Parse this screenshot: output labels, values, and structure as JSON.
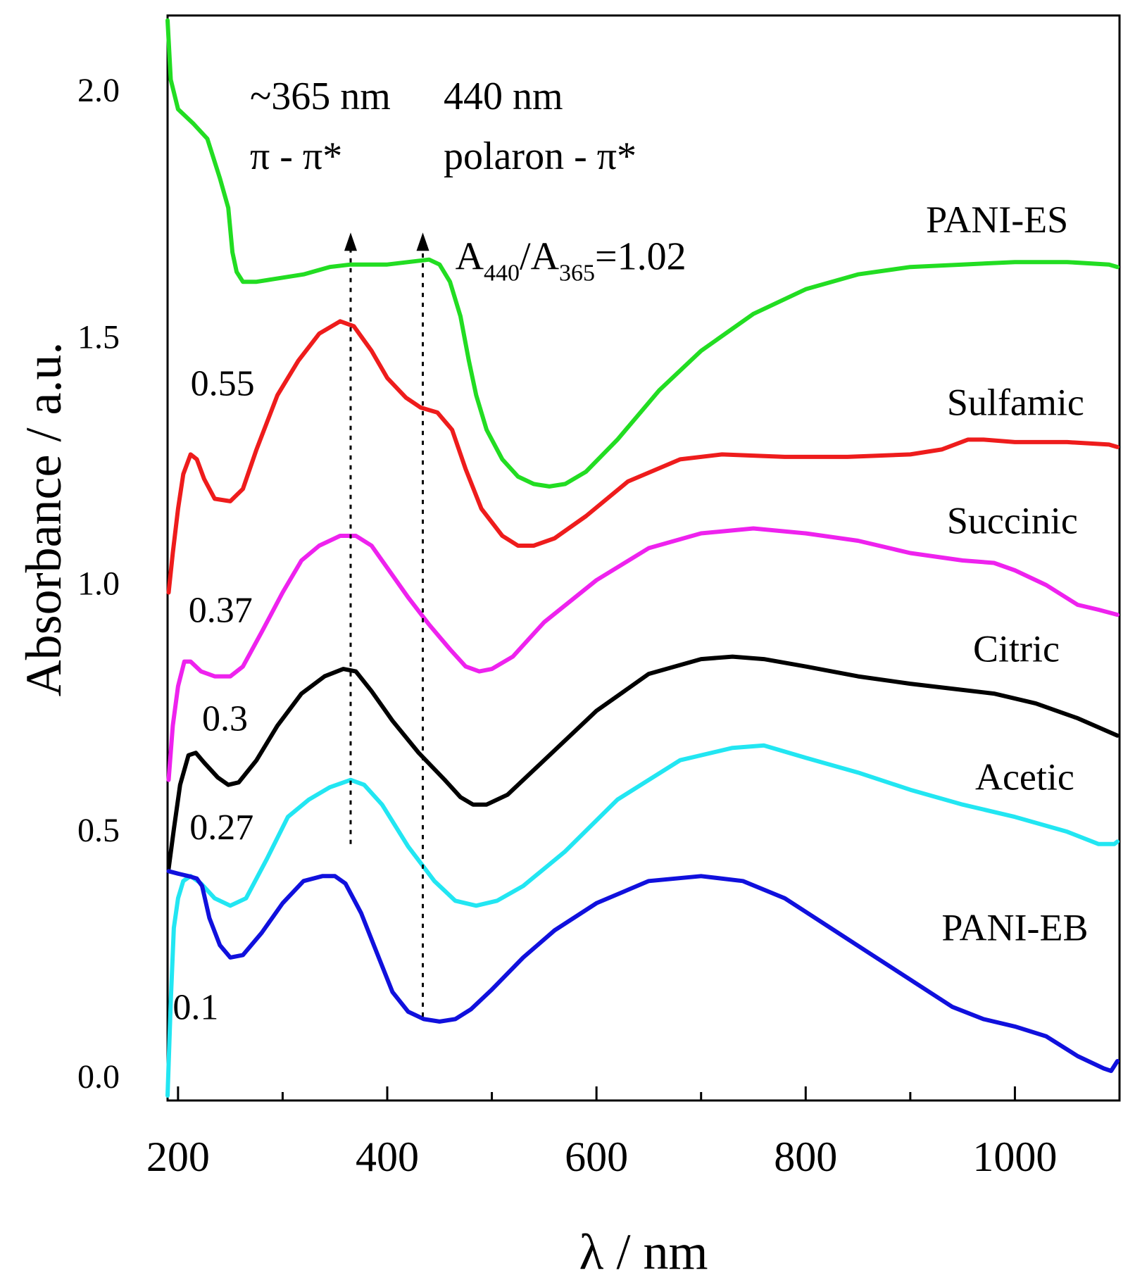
{
  "chart_data": {
    "type": "line",
    "title": "",
    "xlabel": "λ / nm",
    "ylabel": "Absorbance / a.u.",
    "xlim": [
      190,
      1100
    ],
    "ylim": [
      -0.05,
      2.15
    ],
    "x_ticks": [
      200,
      400,
      600,
      800,
      1000
    ],
    "x_tick_labels": [
      "200",
      "400",
      "600",
      "800",
      "1000"
    ],
    "x_minor_ticks": [
      300,
      500,
      700,
      900
    ],
    "y_ticks": [
      0.0,
      0.5,
      1.0,
      1.5,
      2.0
    ],
    "y_tick_labels": [
      "0.0",
      "0.5",
      "1.0",
      "1.5",
      "2.0"
    ],
    "grid": false,
    "series": [
      {
        "name": "PANI-ES",
        "color": "#22dd22",
        "points": [
          [
            190,
            2.14
          ],
          [
            193,
            2.02
          ],
          [
            200,
            1.96
          ],
          [
            215,
            1.93
          ],
          [
            228,
            1.9
          ],
          [
            240,
            1.82
          ],
          [
            248,
            1.76
          ],
          [
            252,
            1.67
          ],
          [
            256,
            1.63
          ],
          [
            262,
            1.61
          ],
          [
            275,
            1.61
          ],
          [
            290,
            1.615
          ],
          [
            320,
            1.625
          ],
          [
            345,
            1.64
          ],
          [
            365,
            1.645
          ],
          [
            385,
            1.645
          ],
          [
            400,
            1.645
          ],
          [
            420,
            1.65
          ],
          [
            440,
            1.655
          ],
          [
            450,
            1.645
          ],
          [
            460,
            1.61
          ],
          [
            470,
            1.54
          ],
          [
            478,
            1.45
          ],
          [
            485,
            1.38
          ],
          [
            495,
            1.31
          ],
          [
            510,
            1.25
          ],
          [
            525,
            1.215
          ],
          [
            540,
            1.2
          ],
          [
            555,
            1.195
          ],
          [
            570,
            1.2
          ],
          [
            590,
            1.225
          ],
          [
            620,
            1.29
          ],
          [
            660,
            1.39
          ],
          [
            700,
            1.47
          ],
          [
            750,
            1.545
          ],
          [
            800,
            1.595
          ],
          [
            850,
            1.625
          ],
          [
            900,
            1.64
          ],
          [
            950,
            1.645
          ],
          [
            1000,
            1.65
          ],
          [
            1050,
            1.65
          ],
          [
            1090,
            1.645
          ],
          [
            1098,
            1.64
          ]
        ]
      },
      {
        "name": "Sulfamic",
        "color": "#ee1c1c",
        "points": [
          [
            191,
            0.98
          ],
          [
            195,
            1.06
          ],
          [
            200,
            1.15
          ],
          [
            205,
            1.22
          ],
          [
            212,
            1.26
          ],
          [
            218,
            1.25
          ],
          [
            225,
            1.21
          ],
          [
            235,
            1.17
          ],
          [
            250,
            1.165
          ],
          [
            262,
            1.19
          ],
          [
            275,
            1.27
          ],
          [
            295,
            1.38
          ],
          [
            315,
            1.45
          ],
          [
            335,
            1.505
          ],
          [
            355,
            1.53
          ],
          [
            368,
            1.52
          ],
          [
            385,
            1.47
          ],
          [
            400,
            1.415
          ],
          [
            418,
            1.375
          ],
          [
            432,
            1.355
          ],
          [
            448,
            1.345
          ],
          [
            462,
            1.31
          ],
          [
            475,
            1.23
          ],
          [
            490,
            1.15
          ],
          [
            510,
            1.095
          ],
          [
            525,
            1.075
          ],
          [
            540,
            1.075
          ],
          [
            560,
            1.09
          ],
          [
            590,
            1.135
          ],
          [
            630,
            1.205
          ],
          [
            680,
            1.25
          ],
          [
            720,
            1.26
          ],
          [
            780,
            1.255
          ],
          [
            840,
            1.255
          ],
          [
            900,
            1.26
          ],
          [
            930,
            1.27
          ],
          [
            955,
            1.29
          ],
          [
            970,
            1.29
          ],
          [
            1000,
            1.285
          ],
          [
            1050,
            1.285
          ],
          [
            1090,
            1.28
          ],
          [
            1098,
            1.275
          ]
        ]
      },
      {
        "name": "Succinic",
        "color": "#ee22ee",
        "points": [
          [
            191,
            0.6
          ],
          [
            195,
            0.71
          ],
          [
            200,
            0.79
          ],
          [
            206,
            0.84
          ],
          [
            212,
            0.84
          ],
          [
            222,
            0.82
          ],
          [
            235,
            0.81
          ],
          [
            250,
            0.81
          ],
          [
            262,
            0.83
          ],
          [
            280,
            0.9
          ],
          [
            300,
            0.98
          ],
          [
            318,
            1.045
          ],
          [
            335,
            1.075
          ],
          [
            355,
            1.095
          ],
          [
            370,
            1.095
          ],
          [
            385,
            1.075
          ],
          [
            400,
            1.03
          ],
          [
            420,
            0.97
          ],
          [
            440,
            0.915
          ],
          [
            460,
            0.865
          ],
          [
            475,
            0.83
          ],
          [
            488,
            0.82
          ],
          [
            500,
            0.825
          ],
          [
            520,
            0.85
          ],
          [
            550,
            0.92
          ],
          [
            600,
            1.005
          ],
          [
            650,
            1.07
          ],
          [
            700,
            1.1
          ],
          [
            750,
            1.11
          ],
          [
            800,
            1.1
          ],
          [
            850,
            1.085
          ],
          [
            900,
            1.06
          ],
          [
            950,
            1.045
          ],
          [
            980,
            1.04
          ],
          [
            1000,
            1.025
          ],
          [
            1030,
            0.995
          ],
          [
            1060,
            0.955
          ],
          [
            1080,
            0.945
          ],
          [
            1098,
            0.935
          ]
        ]
      },
      {
        "name": "Citric",
        "color": "#000000",
        "points": [
          [
            191,
            0.42
          ],
          [
            196,
            0.5
          ],
          [
            202,
            0.59
          ],
          [
            210,
            0.65
          ],
          [
            217,
            0.655
          ],
          [
            225,
            0.635
          ],
          [
            238,
            0.605
          ],
          [
            248,
            0.59
          ],
          [
            258,
            0.595
          ],
          [
            275,
            0.64
          ],
          [
            295,
            0.71
          ],
          [
            318,
            0.775
          ],
          [
            340,
            0.81
          ],
          [
            358,
            0.825
          ],
          [
            370,
            0.82
          ],
          [
            385,
            0.78
          ],
          [
            405,
            0.72
          ],
          [
            430,
            0.655
          ],
          [
            455,
            0.6
          ],
          [
            470,
            0.565
          ],
          [
            482,
            0.55
          ],
          [
            495,
            0.55
          ],
          [
            515,
            0.57
          ],
          [
            550,
            0.64
          ],
          [
            600,
            0.74
          ],
          [
            650,
            0.815
          ],
          [
            700,
            0.845
          ],
          [
            730,
            0.85
          ],
          [
            760,
            0.845
          ],
          [
            800,
            0.83
          ],
          [
            850,
            0.81
          ],
          [
            900,
            0.795
          ],
          [
            940,
            0.785
          ],
          [
            980,
            0.775
          ],
          [
            1020,
            0.755
          ],
          [
            1060,
            0.725
          ],
          [
            1098,
            0.69
          ]
        ]
      },
      {
        "name": "Acetic",
        "color": "#22e6f2",
        "points": [
          [
            190,
            -0.04
          ],
          [
            193,
            0.15
          ],
          [
            196,
            0.3
          ],
          [
            200,
            0.36
          ],
          [
            205,
            0.395
          ],
          [
            212,
            0.405
          ],
          [
            222,
            0.39
          ],
          [
            235,
            0.36
          ],
          [
            250,
            0.345
          ],
          [
            265,
            0.36
          ],
          [
            285,
            0.44
          ],
          [
            305,
            0.525
          ],
          [
            325,
            0.56
          ],
          [
            345,
            0.585
          ],
          [
            365,
            0.6
          ],
          [
            378,
            0.59
          ],
          [
            395,
            0.55
          ],
          [
            420,
            0.465
          ],
          [
            445,
            0.395
          ],
          [
            465,
            0.355
          ],
          [
            485,
            0.345
          ],
          [
            505,
            0.355
          ],
          [
            530,
            0.385
          ],
          [
            570,
            0.455
          ],
          [
            620,
            0.56
          ],
          [
            680,
            0.64
          ],
          [
            730,
            0.665
          ],
          [
            760,
            0.67
          ],
          [
            800,
            0.645
          ],
          [
            850,
            0.615
          ],
          [
            900,
            0.58
          ],
          [
            950,
            0.55
          ],
          [
            1000,
            0.525
          ],
          [
            1050,
            0.495
          ],
          [
            1080,
            0.47
          ],
          [
            1095,
            0.47
          ],
          [
            1098,
            0.475
          ]
        ]
      },
      {
        "name": "PANI-EB",
        "color": "#1010dd",
        "points": [
          [
            191,
            0.415
          ],
          [
            200,
            0.41
          ],
          [
            210,
            0.405
          ],
          [
            218,
            0.4
          ],
          [
            223,
            0.385
          ],
          [
            230,
            0.32
          ],
          [
            240,
            0.265
          ],
          [
            250,
            0.24
          ],
          [
            262,
            0.245
          ],
          [
            280,
            0.29
          ],
          [
            300,
            0.35
          ],
          [
            320,
            0.395
          ],
          [
            338,
            0.405
          ],
          [
            350,
            0.405
          ],
          [
            360,
            0.39
          ],
          [
            375,
            0.33
          ],
          [
            390,
            0.25
          ],
          [
            405,
            0.17
          ],
          [
            420,
            0.13
          ],
          [
            435,
            0.115
          ],
          [
            450,
            0.11
          ],
          [
            465,
            0.115
          ],
          [
            480,
            0.135
          ],
          [
            500,
            0.175
          ],
          [
            530,
            0.24
          ],
          [
            560,
            0.295
          ],
          [
            600,
            0.35
          ],
          [
            650,
            0.395
          ],
          [
            700,
            0.405
          ],
          [
            740,
            0.395
          ],
          [
            780,
            0.36
          ],
          [
            820,
            0.305
          ],
          [
            860,
            0.25
          ],
          [
            900,
            0.195
          ],
          [
            940,
            0.14
          ],
          [
            970,
            0.115
          ],
          [
            1000,
            0.1
          ],
          [
            1030,
            0.08
          ],
          [
            1060,
            0.04
          ],
          [
            1085,
            0.015
          ],
          [
            1092,
            0.01
          ],
          [
            1098,
            0.03
          ]
        ]
      }
    ],
    "series_labels": [
      {
        "text": "PANI-ES",
        "x": 915,
        "y": 1.71
      },
      {
        "text": "Sulfamic",
        "x": 935,
        "y": 1.34
      },
      {
        "text": "Succinic",
        "x": 935,
        "y": 1.1
      },
      {
        "text": "Citric",
        "x": 960,
        "y": 0.84
      },
      {
        "text": "Acetic",
        "x": 962,
        "y": 0.58
      },
      {
        "text": "PANI-EB",
        "x": 930,
        "y": 0.275
      }
    ],
    "ratio_labels": [
      {
        "text": "0.55",
        "x": 212,
        "y": 1.38
      },
      {
        "text": "0.37",
        "x": 210,
        "y": 0.92
      },
      {
        "text": "0.3",
        "x": 223,
        "y": 0.7
      },
      {
        "text": "0.27",
        "x": 211,
        "y": 0.48
      },
      {
        "text": "0.1",
        "x": 195,
        "y": 0.115
      }
    ],
    "annotations": {
      "peak1_line1": "~365 nm",
      "peak1_line2": "π - π*",
      "peak2_line1": "440 nm",
      "peak2_line2": "polaron - π*",
      "ratio_A": "A",
      "ratio_sub1": "440",
      "ratio_slash": "/A",
      "ratio_sub2": "365",
      "ratio_value": "=1.02",
      "peak1_x": 365,
      "peak2_x": 434,
      "arrow_y_top": 1.71,
      "arrow1_y_bottom": 0.47,
      "arrow2_y_bottom": 0.12,
      "ratio_x": 465,
      "ratio_y": 1.635
    }
  }
}
